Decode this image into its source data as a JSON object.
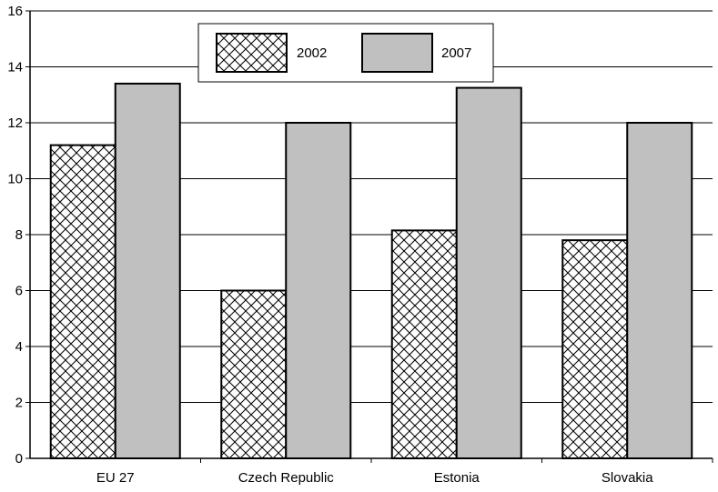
{
  "chart_data": {
    "type": "bar",
    "categories": [
      "EU 27",
      "Czech Republic",
      "Estonia",
      "Slovakia"
    ],
    "series": [
      {
        "name": "2002",
        "values": [
          11.2,
          6.0,
          8.15,
          7.8
        ]
      },
      {
        "name": "2007",
        "values": [
          13.4,
          12.0,
          13.25,
          12.0
        ]
      }
    ],
    "y_ticks": [
      "0",
      "2",
      "4",
      "6",
      "8",
      "10",
      "12",
      "14",
      "16"
    ],
    "ylim": [
      0,
      16
    ],
    "grid": "horizontal",
    "legend_position": "top-center",
    "colors": {
      "series_2002": "#ffffff",
      "series_2002_pattern": "crosshatch",
      "series_2007": "#c0c0c0",
      "stroke": "#000000"
    }
  }
}
